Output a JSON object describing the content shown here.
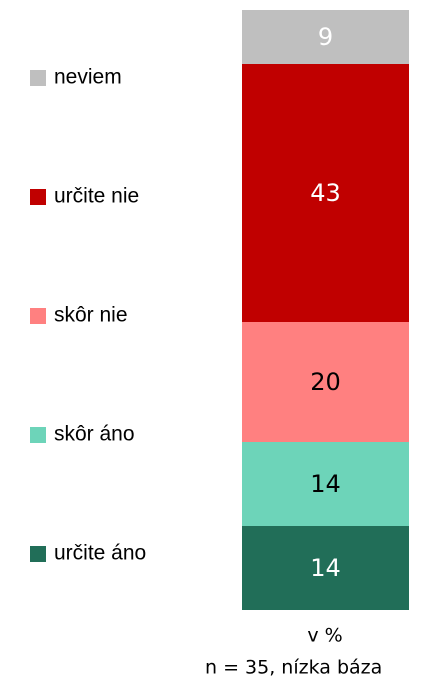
{
  "chart_data": {
    "type": "bar",
    "stacked": true,
    "series": [
      {
        "name": "určite áno",
        "color": "#216e58",
        "label_color": "#ffffff",
        "values": [
          14
        ]
      },
      {
        "name": "skôr áno",
        "color": "#6dd4b9",
        "label_color": "#000000",
        "values": [
          14
        ]
      },
      {
        "name": "skôr nie",
        "color": "#ff8080",
        "label_color": "#000000",
        "values": [
          20
        ]
      },
      {
        "name": "určite nie",
        "color": "#c00000",
        "label_color": "#ffffff",
        "values": [
          43
        ]
      },
      {
        "name": "neviem",
        "color": "#bfbfbf",
        "label_color": "#ffffff",
        "values": [
          9
        ]
      }
    ],
    "unit_label": "v %",
    "note": "n = 35, nízka báza"
  }
}
